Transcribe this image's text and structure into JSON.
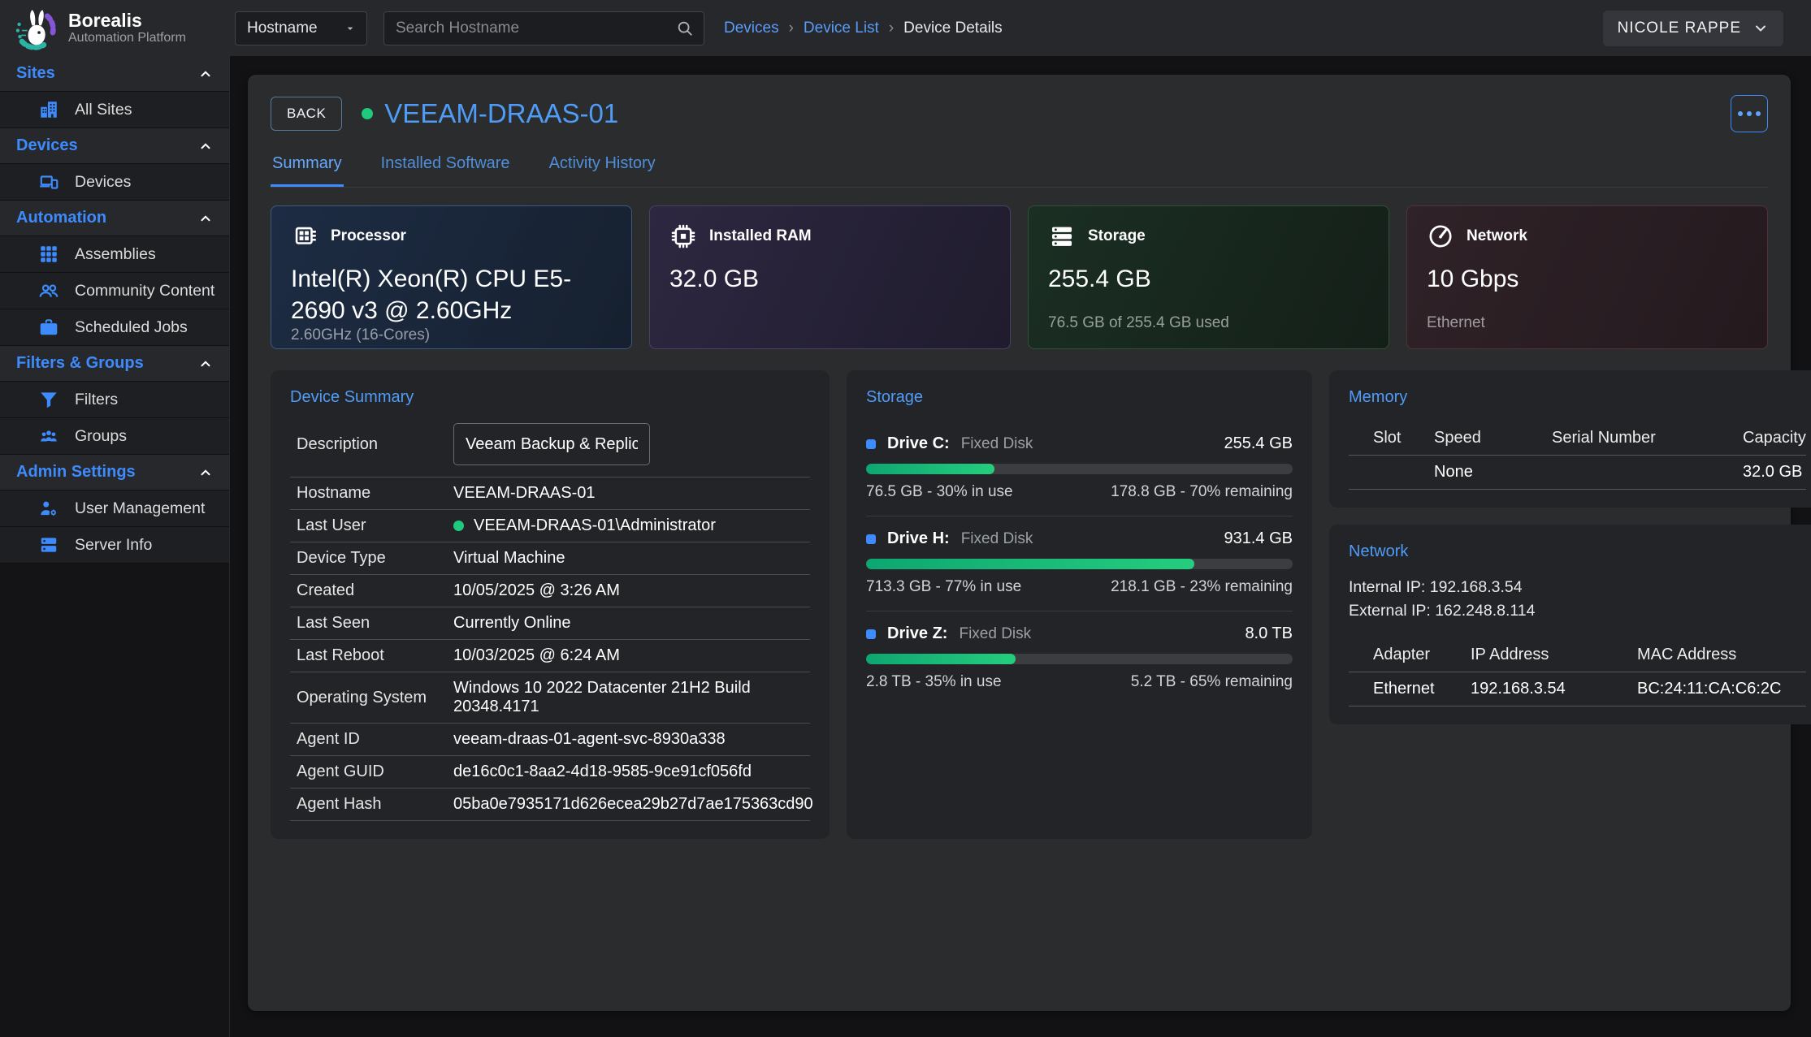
{
  "brand": {
    "name": "Borealis",
    "subtitle": "Automation Platform"
  },
  "topbar": {
    "filter_label": "Hostname",
    "search_placeholder": "Search Hostname",
    "breadcrumb_separator": "›",
    "breadcrumbs": [
      "Devices",
      "Device List",
      "Device Details"
    ],
    "user_name": "NICOLE RAPPE"
  },
  "sidebar": {
    "sections": [
      {
        "header": "Sites",
        "items": [
          {
            "label": "All Sites"
          }
        ]
      },
      {
        "header": "Devices",
        "items": [
          {
            "label": "Devices"
          }
        ]
      },
      {
        "header": "Automation",
        "items": [
          {
            "label": "Assemblies"
          },
          {
            "label": "Community Content"
          },
          {
            "label": "Scheduled Jobs"
          }
        ]
      },
      {
        "header": "Filters & Groups",
        "items": [
          {
            "label": "Filters"
          },
          {
            "label": "Groups"
          }
        ]
      },
      {
        "header": "Admin Settings",
        "items": [
          {
            "label": "User Management"
          },
          {
            "label": "Server Info"
          }
        ]
      }
    ]
  },
  "device": {
    "back_label": "BACK",
    "name": "VEEAM-DRAAS-01",
    "tabs": [
      "Summary",
      "Installed Software",
      "Activity History"
    ],
    "active_tab": "Summary"
  },
  "stat_cards": [
    {
      "label": "Processor",
      "value": "Intel(R) Xeon(R) CPU E5-2690 v3 @ 2.60GHz",
      "sub": "2.60GHz (16-Cores)"
    },
    {
      "label": "Installed RAM",
      "value": "32.0 GB",
      "sub": ""
    },
    {
      "label": "Storage",
      "value": "255.4 GB",
      "sub": "76.5 GB of 255.4 GB used"
    },
    {
      "label": "Network",
      "value": "10 Gbps",
      "sub": "Ethernet"
    }
  ],
  "summary": {
    "title": "Device Summary",
    "description": {
      "label": "Description",
      "value": "Veeam Backup & Replication"
    },
    "rows": [
      {
        "label": "Hostname",
        "value": "VEEAM-DRAAS-01"
      },
      {
        "label": "Last User",
        "value": "VEEAM-DRAAS-01\\Administrator"
      },
      {
        "label": "Device Type",
        "value": "Virtual Machine"
      },
      {
        "label": "Created",
        "value": "10/05/2025 @ 3:26 AM"
      },
      {
        "label": "Last Seen",
        "value": "Currently Online"
      },
      {
        "label": "Last Reboot",
        "value": "10/03/2025 @ 6:24 AM"
      },
      {
        "label": "Operating System",
        "value": "Windows 10 2022 Datacenter 21H2 Build 20348.4171"
      },
      {
        "label": "Agent ID",
        "value": "veeam-draas-01-agent-svc-8930a338"
      },
      {
        "label": "Agent GUID",
        "value": "de16c0c1-8aa2-4d18-9585-9ce91cf056fd"
      },
      {
        "label": "Agent Hash",
        "value": "05ba0e7935171d626ecea29b27d7ae175363cd90"
      }
    ]
  },
  "storage_panel": {
    "title": "Storage",
    "drives": [
      {
        "name": "Drive C:",
        "type": "Fixed Disk",
        "size": "255.4 GB",
        "used_pct": 30,
        "used": "76.5 GB - 30% in use",
        "remaining": "178.8 GB - 70% remaining"
      },
      {
        "name": "Drive H:",
        "type": "Fixed Disk",
        "size": "931.4 GB",
        "used_pct": 77,
        "used": "713.3 GB - 77% in use",
        "remaining": "218.1 GB - 23% remaining"
      },
      {
        "name": "Drive Z:",
        "type": "Fixed Disk",
        "size": "8.0 TB",
        "used_pct": 35,
        "used": "2.8 TB - 35% in use",
        "remaining": "5.2 TB - 65% remaining"
      }
    ]
  },
  "memory_panel": {
    "title": "Memory",
    "headers": [
      "Slot",
      "Speed",
      "Serial Number",
      "Capacity"
    ],
    "rows": [
      {
        "slot": "",
        "speed": "None",
        "serial": "",
        "capacity": "32.0 GB"
      }
    ]
  },
  "network_panel": {
    "title": "Network",
    "internal_ip": "Internal IP: 192.168.3.54",
    "external_ip": "External IP: 162.248.8.114",
    "headers": [
      "Adapter",
      "IP Address",
      "MAC Address"
    ],
    "adapters": [
      {
        "adapter": "Ethernet",
        "ip": "192.168.3.54",
        "mac": "BC:24:11:CA:C6:2C"
      }
    ]
  },
  "colors": {
    "accent_blue": "#3d8bfd",
    "online_green": "#1fc97d"
  }
}
